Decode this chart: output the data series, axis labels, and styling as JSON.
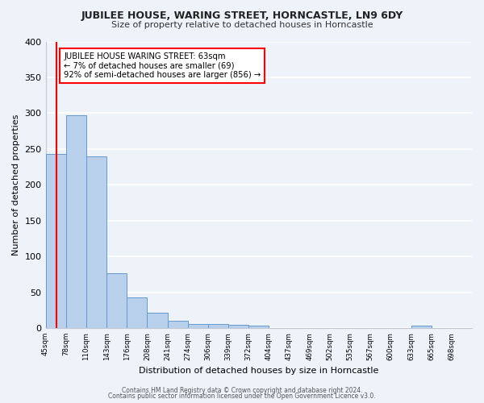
{
  "title": "JUBILEE HOUSE, WARING STREET, HORNCASTLE, LN9 6DY",
  "subtitle": "Size of property relative to detached houses in Horncastle",
  "xlabel": "Distribution of detached houses by size in Horncastle",
  "ylabel": "Number of detached properties",
  "bin_labels": [
    "45sqm",
    "78sqm",
    "110sqm",
    "143sqm",
    "176sqm",
    "208sqm",
    "241sqm",
    "274sqm",
    "306sqm",
    "339sqm",
    "372sqm",
    "404sqm",
    "437sqm",
    "469sqm",
    "502sqm",
    "535sqm",
    "567sqm",
    "600sqm",
    "633sqm",
    "665sqm",
    "698sqm"
  ],
  "bar_heights": [
    243,
    297,
    240,
    77,
    43,
    21,
    10,
    6,
    5,
    4,
    3,
    0,
    0,
    0,
    0,
    0,
    0,
    0,
    3,
    0,
    0
  ],
  "bar_color": "#b8d0eb",
  "bar_edge_color": "#6699cc",
  "ylim": [
    0,
    400
  ],
  "yticks": [
    0,
    50,
    100,
    150,
    200,
    250,
    300,
    350,
    400
  ],
  "annotation_title": "JUBILEE HOUSE WARING STREET: 63sqm",
  "annotation_line1": "← 7% of detached houses are smaller (69)",
  "annotation_line2": "92% of semi-detached houses are larger (856) →",
  "red_line_bin": 0,
  "footer_line1": "Contains HM Land Registry data © Crown copyright and database right 2024.",
  "footer_line2": "Contains public sector information licensed under the Open Government Licence v3.0.",
  "background_color": "#eef2f9",
  "grid_color": "#ffffff"
}
